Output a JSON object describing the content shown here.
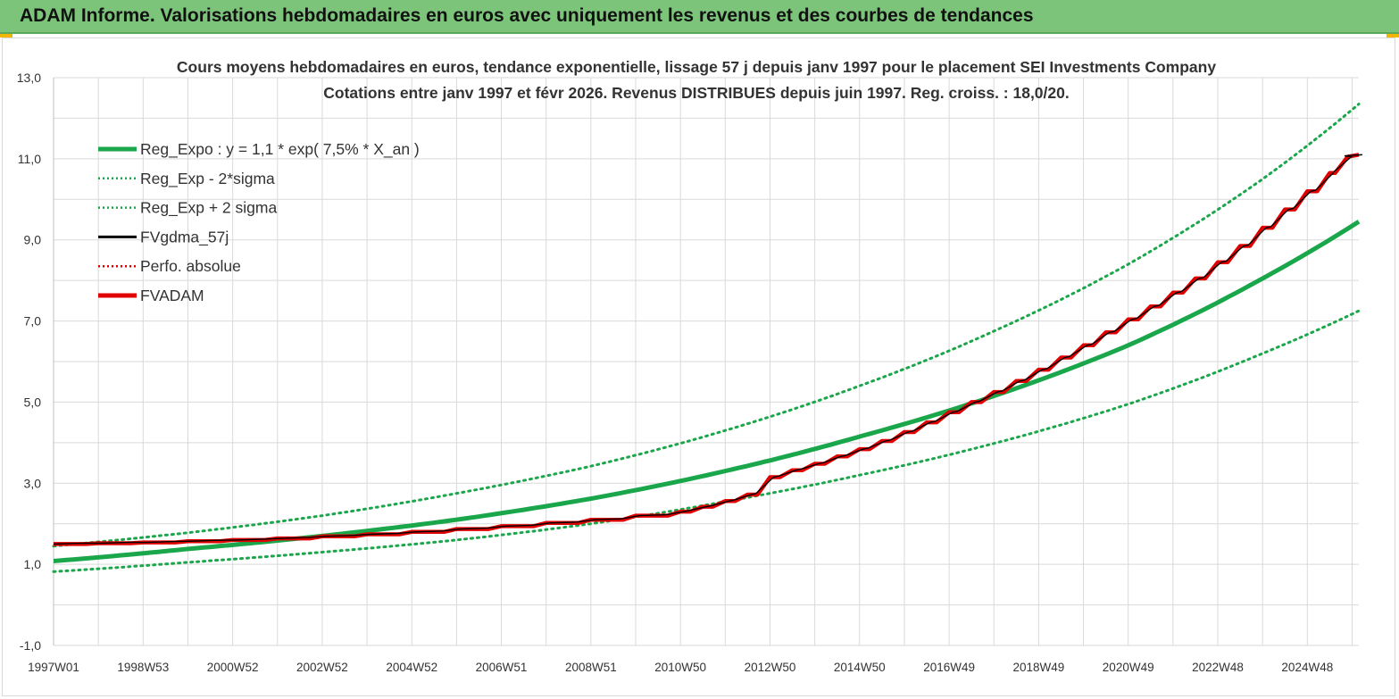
{
  "header": {
    "title": "ADAM Informe. Valorisations hebdomadaires en euros avec uniquement les revenus et des courbes de tendances"
  },
  "colors": {
    "header_bg": "#7cc47a",
    "green": "#1aa64a",
    "black": "#000000",
    "red": "#e00000",
    "grid": "#d9d9d9"
  },
  "chart_data": {
    "type": "line",
    "title_line1": "Cours moyens hebdomadaires en euros, tendance exponentielle, lissage 57 j depuis janv 1997  pour le placement SEI Investments Company",
    "title_line2": "Cotations entre janv 1997 et févr 2026. Revenus DISTRIBUES depuis juin 1997. Reg. croiss. : 18,0/20.",
    "x_range_years": [
      1997.0,
      2026.15
    ],
    "ylim": [
      -1,
      13
    ],
    "y_ticks": [
      "13,0",
      "11,0",
      "9,0",
      "7,0",
      "5,0",
      "3,0",
      "1,0",
      "-1,0"
    ],
    "y_tick_values": [
      13,
      11,
      9,
      7,
      5,
      3,
      1,
      -1
    ],
    "x_tick_labels": [
      "1997W01",
      "1998W53",
      "2000W52",
      "2002W52",
      "2004W52",
      "2006W51",
      "2008W51",
      "2010W50",
      "2012W50",
      "2014W50",
      "2016W49",
      "2018W49",
      "2020W49",
      "2022W48",
      "2024W48"
    ],
    "x_tick_years": [
      1997.0,
      1999.0,
      2001.0,
      2003.0,
      2005.0,
      2007.0,
      2009.0,
      2011.0,
      2013.0,
      2015.0,
      2017.0,
      2019.0,
      2021.0,
      2023.0,
      2025.0
    ],
    "grid": true,
    "legend_position": "top-left",
    "legend": [
      {
        "label": "Reg_Expo : y = 1,1 * exp( 7,5% *  X_an )",
        "color": "#1aa64a",
        "style": "solid-thick"
      },
      {
        "label": "Reg_Exp - 2*sigma",
        "color": "#1aa64a",
        "style": "dotted"
      },
      {
        "label": "Reg_Exp + 2 sigma",
        "color": "#1aa64a",
        "style": "dotted"
      },
      {
        "label": "FVgdma_57j",
        "color": "#000000",
        "style": "solid"
      },
      {
        "label": "Perfo. absolue",
        "color": "#e00000",
        "style": "dotted"
      },
      {
        "label": "FVADAM",
        "color": "#e00000",
        "style": "solid-thick"
      }
    ],
    "series": [
      {
        "name": "Reg_Expo : y = 1,1 * exp( 7,5% *  X_an )",
        "x": [
          1997.0,
          2000.0,
          2003.0,
          2006.0,
          2009.0,
          2012.0,
          2015.0,
          2018.0,
          2021.0,
          2024.0,
          2026.15
        ],
        "y": [
          1.08,
          1.38,
          1.7,
          2.1,
          2.62,
          3.3,
          4.15,
          5.15,
          6.4,
          8.05,
          9.45
        ]
      },
      {
        "name": "Reg_Exp - 2*sigma",
        "x": [
          1997.0,
          2000.0,
          2003.0,
          2006.0,
          2009.0,
          2012.0,
          2015.0,
          2018.0,
          2021.0,
          2024.0,
          2026.15
        ],
        "y": [
          0.82,
          1.05,
          1.3,
          1.6,
          2.0,
          2.55,
          3.2,
          3.98,
          4.95,
          6.2,
          7.25
        ]
      },
      {
        "name": "Reg_Exp + 2 sigma",
        "x": [
          1997.0,
          2000.0,
          2003.0,
          2006.0,
          2009.0,
          2012.0,
          2015.0,
          2018.0,
          2021.0,
          2024.0,
          2026.15
        ],
        "y": [
          1.45,
          1.78,
          2.2,
          2.75,
          3.42,
          4.3,
          5.4,
          6.75,
          8.4,
          10.5,
          12.35
        ]
      },
      {
        "name": "FVADAM",
        "steps": [
          [
            1997.0,
            1.5
          ],
          [
            1998.0,
            1.52
          ],
          [
            1999.0,
            1.54
          ],
          [
            2000.0,
            1.57
          ],
          [
            2001.0,
            1.6
          ],
          [
            2002.0,
            1.64
          ],
          [
            2003.0,
            1.69
          ],
          [
            2004.0,
            1.74
          ],
          [
            2005.0,
            1.8
          ],
          [
            2006.0,
            1.87
          ],
          [
            2007.0,
            1.94
          ],
          [
            2008.0,
            2.02
          ],
          [
            2009.0,
            2.1
          ],
          [
            2010.0,
            2.2
          ],
          [
            2011.0,
            2.3
          ],
          [
            2011.5,
            2.42
          ],
          [
            2012.0,
            2.56
          ],
          [
            2012.5,
            2.72
          ],
          [
            2013.0,
            3.15
          ],
          [
            2013.5,
            3.32
          ],
          [
            2014.0,
            3.48
          ],
          [
            2014.5,
            3.66
          ],
          [
            2015.0,
            3.84
          ],
          [
            2015.5,
            4.04
          ],
          [
            2016.0,
            4.26
          ],
          [
            2016.5,
            4.5
          ],
          [
            2017.0,
            4.75
          ],
          [
            2017.5,
            5.0
          ],
          [
            2018.0,
            5.25
          ],
          [
            2018.5,
            5.52
          ],
          [
            2019.0,
            5.8
          ],
          [
            2019.5,
            6.1
          ],
          [
            2020.0,
            6.4
          ],
          [
            2020.5,
            6.72
          ],
          [
            2021.0,
            7.04
          ],
          [
            2021.5,
            7.36
          ],
          [
            2022.0,
            7.7
          ],
          [
            2022.5,
            8.05
          ],
          [
            2023.0,
            8.45
          ],
          [
            2023.5,
            8.85
          ],
          [
            2024.0,
            9.3
          ],
          [
            2024.5,
            9.75
          ],
          [
            2025.0,
            10.2
          ],
          [
            2025.5,
            10.65
          ],
          [
            2025.9,
            11.05
          ],
          [
            2026.15,
            11.1
          ]
        ]
      },
      {
        "name": "FVgdma_57j",
        "follows": "FVADAM"
      }
    ]
  }
}
